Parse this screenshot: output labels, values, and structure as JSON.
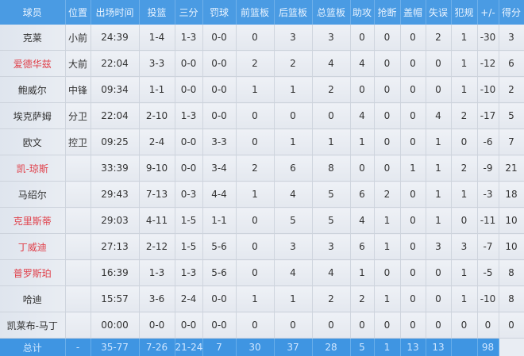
{
  "headers": [
    "球员",
    "位置",
    "出场时间",
    "投篮",
    "三分",
    "罚球",
    "前篮板",
    "后篮板",
    "总篮板",
    "助攻",
    "抢断",
    "盖帽",
    "失误",
    "犯规",
    "+/-",
    "得分"
  ],
  "colors": {
    "header_bg": "#4a9be3",
    "highlight_name": "#e0404a",
    "total_bg": "#3f95e2"
  },
  "players": [
    {
      "name": "克莱",
      "highlight": false,
      "stats": [
        "小前",
        "24:39",
        "1-4",
        "1-3",
        "0-0",
        "0",
        "3",
        "3",
        "0",
        "0",
        "0",
        "2",
        "1",
        "-30",
        "3"
      ]
    },
    {
      "name": "爱德华兹",
      "highlight": true,
      "stats": [
        "大前",
        "22:04",
        "3-3",
        "0-0",
        "0-0",
        "2",
        "2",
        "4",
        "4",
        "0",
        "0",
        "0",
        "1",
        "-12",
        "6"
      ]
    },
    {
      "name": "鲍威尔",
      "highlight": false,
      "stats": [
        "中锋",
        "09:34",
        "1-1",
        "0-0",
        "0-0",
        "1",
        "1",
        "2",
        "0",
        "0",
        "0",
        "0",
        "1",
        "-10",
        "2"
      ]
    },
    {
      "name": "埃克萨姆",
      "highlight": false,
      "stats": [
        "分卫",
        "22:04",
        "2-10",
        "1-3",
        "0-0",
        "0",
        "0",
        "0",
        "4",
        "0",
        "0",
        "4",
        "2",
        "-17",
        "5"
      ]
    },
    {
      "name": "欧文",
      "highlight": false,
      "stats": [
        "控卫",
        "09:25",
        "2-4",
        "0-0",
        "3-3",
        "0",
        "1",
        "1",
        "1",
        "0",
        "0",
        "1",
        "0",
        "-6",
        "7"
      ]
    },
    {
      "name": "凯-琼斯",
      "highlight": true,
      "stats": [
        "",
        "33:39",
        "9-10",
        "0-0",
        "3-4",
        "2",
        "6",
        "8",
        "0",
        "0",
        "1",
        "1",
        "2",
        "-9",
        "21"
      ]
    },
    {
      "name": "马绍尔",
      "highlight": false,
      "stats": [
        "",
        "29:43",
        "7-13",
        "0-3",
        "4-4",
        "1",
        "4",
        "5",
        "6",
        "2",
        "0",
        "1",
        "1",
        "-3",
        "18"
      ]
    },
    {
      "name": "克里斯蒂",
      "highlight": true,
      "stats": [
        "",
        "29:03",
        "4-11",
        "1-5",
        "1-1",
        "0",
        "5",
        "5",
        "4",
        "1",
        "0",
        "1",
        "0",
        "-11",
        "10"
      ]
    },
    {
      "name": "丁威迪",
      "highlight": true,
      "stats": [
        "",
        "27:13",
        "2-12",
        "1-5",
        "5-6",
        "0",
        "3",
        "3",
        "6",
        "1",
        "0",
        "3",
        "3",
        "-7",
        "10"
      ]
    },
    {
      "name": "普罗斯珀",
      "highlight": true,
      "stats": [
        "",
        "16:39",
        "1-3",
        "1-3",
        "5-6",
        "0",
        "4",
        "4",
        "1",
        "0",
        "0",
        "0",
        "1",
        "-5",
        "8"
      ]
    },
    {
      "name": "哈迪",
      "highlight": false,
      "stats": [
        "",
        "15:57",
        "3-6",
        "2-4",
        "0-0",
        "1",
        "1",
        "2",
        "2",
        "1",
        "0",
        "0",
        "1",
        "-10",
        "8"
      ]
    },
    {
      "name": "凯莱布-马丁",
      "highlight": false,
      "stats": [
        "",
        "00:00",
        "0-0",
        "0-0",
        "0-0",
        "0",
        "0",
        "0",
        "0",
        "0",
        "0",
        "0",
        "0",
        "0",
        "0"
      ]
    }
  ],
  "total": {
    "label": "总计",
    "stats": [
      "",
      "-",
      "35-77",
      "7-26",
      "21-24",
      "7",
      "30",
      "37",
      "28",
      "5",
      "1",
      "13",
      "13",
      "",
      "98"
    ]
  }
}
